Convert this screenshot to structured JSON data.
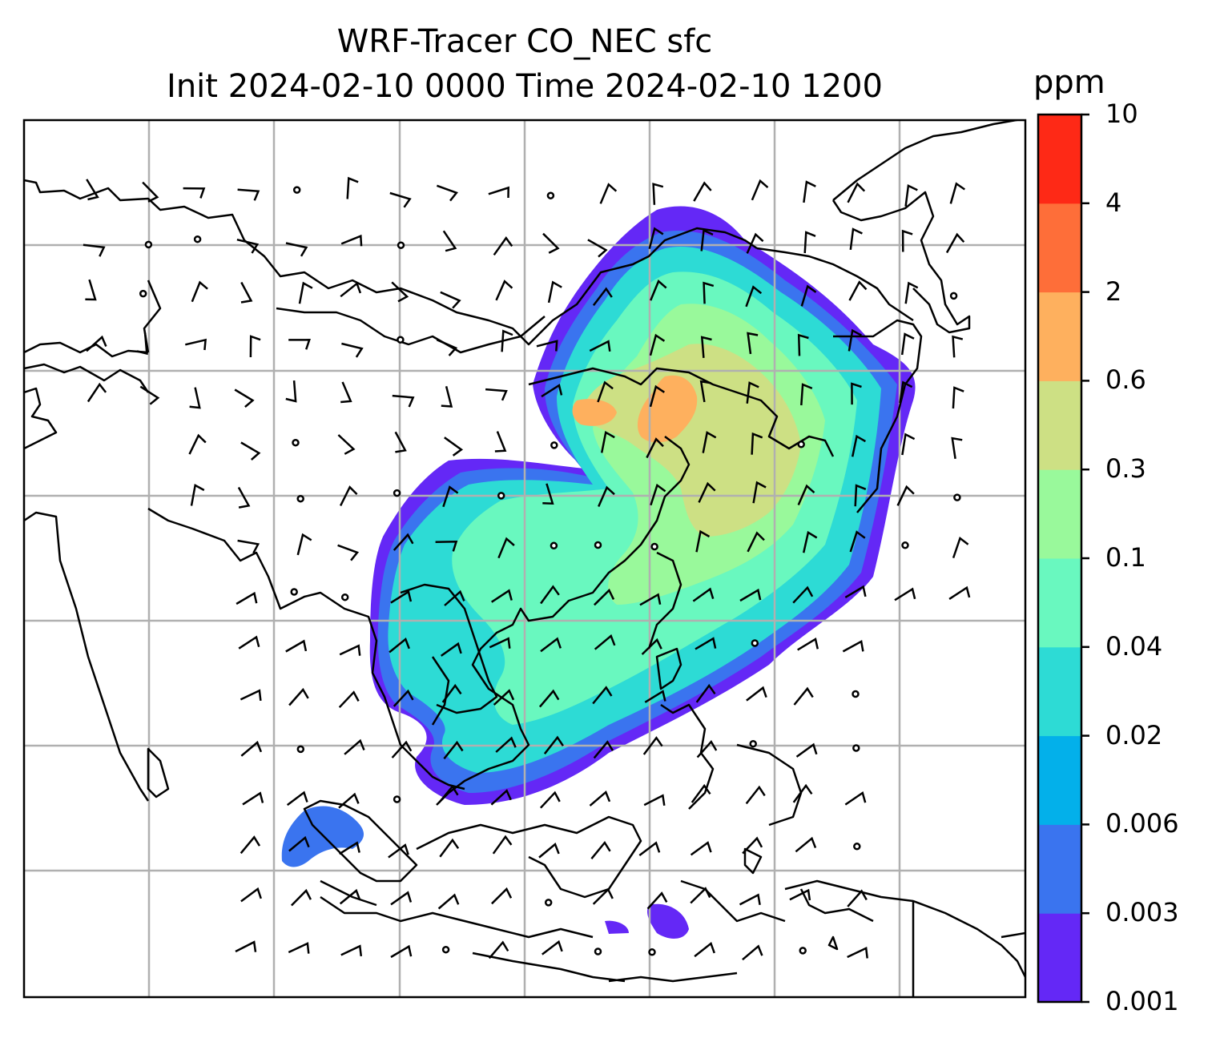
{
  "title_line1": "WRF-Tracer CO_NEC sfc",
  "title_line2": "Init 2024-02-10 0000 Time 2024-02-10 1200",
  "colorbar": {
    "unit": "ppm",
    "ticks": [
      "0.001",
      "0.003",
      "0.006",
      "0.02",
      "0.04",
      "0.1",
      "0.3",
      "0.6",
      "2",
      "4",
      "10"
    ],
    "colors": [
      "#6428f6",
      "#3a74ef",
      "#03b0ea",
      "#2ddbd5",
      "#69f8bf",
      "#99f99b",
      "#cde084",
      "#feb05e",
      "#fe6e39",
      "#fe2916"
    ]
  },
  "map": {
    "gridlines": true,
    "wind_barbs": true,
    "plume_colors": {
      "outer": "#6428f6",
      "level2": "#3a74ef",
      "level3": "#2ddbd5",
      "level4": "#69f8bf",
      "level5": "#99f99b",
      "level6": "#cde084",
      "core": "#feb05e"
    }
  }
}
